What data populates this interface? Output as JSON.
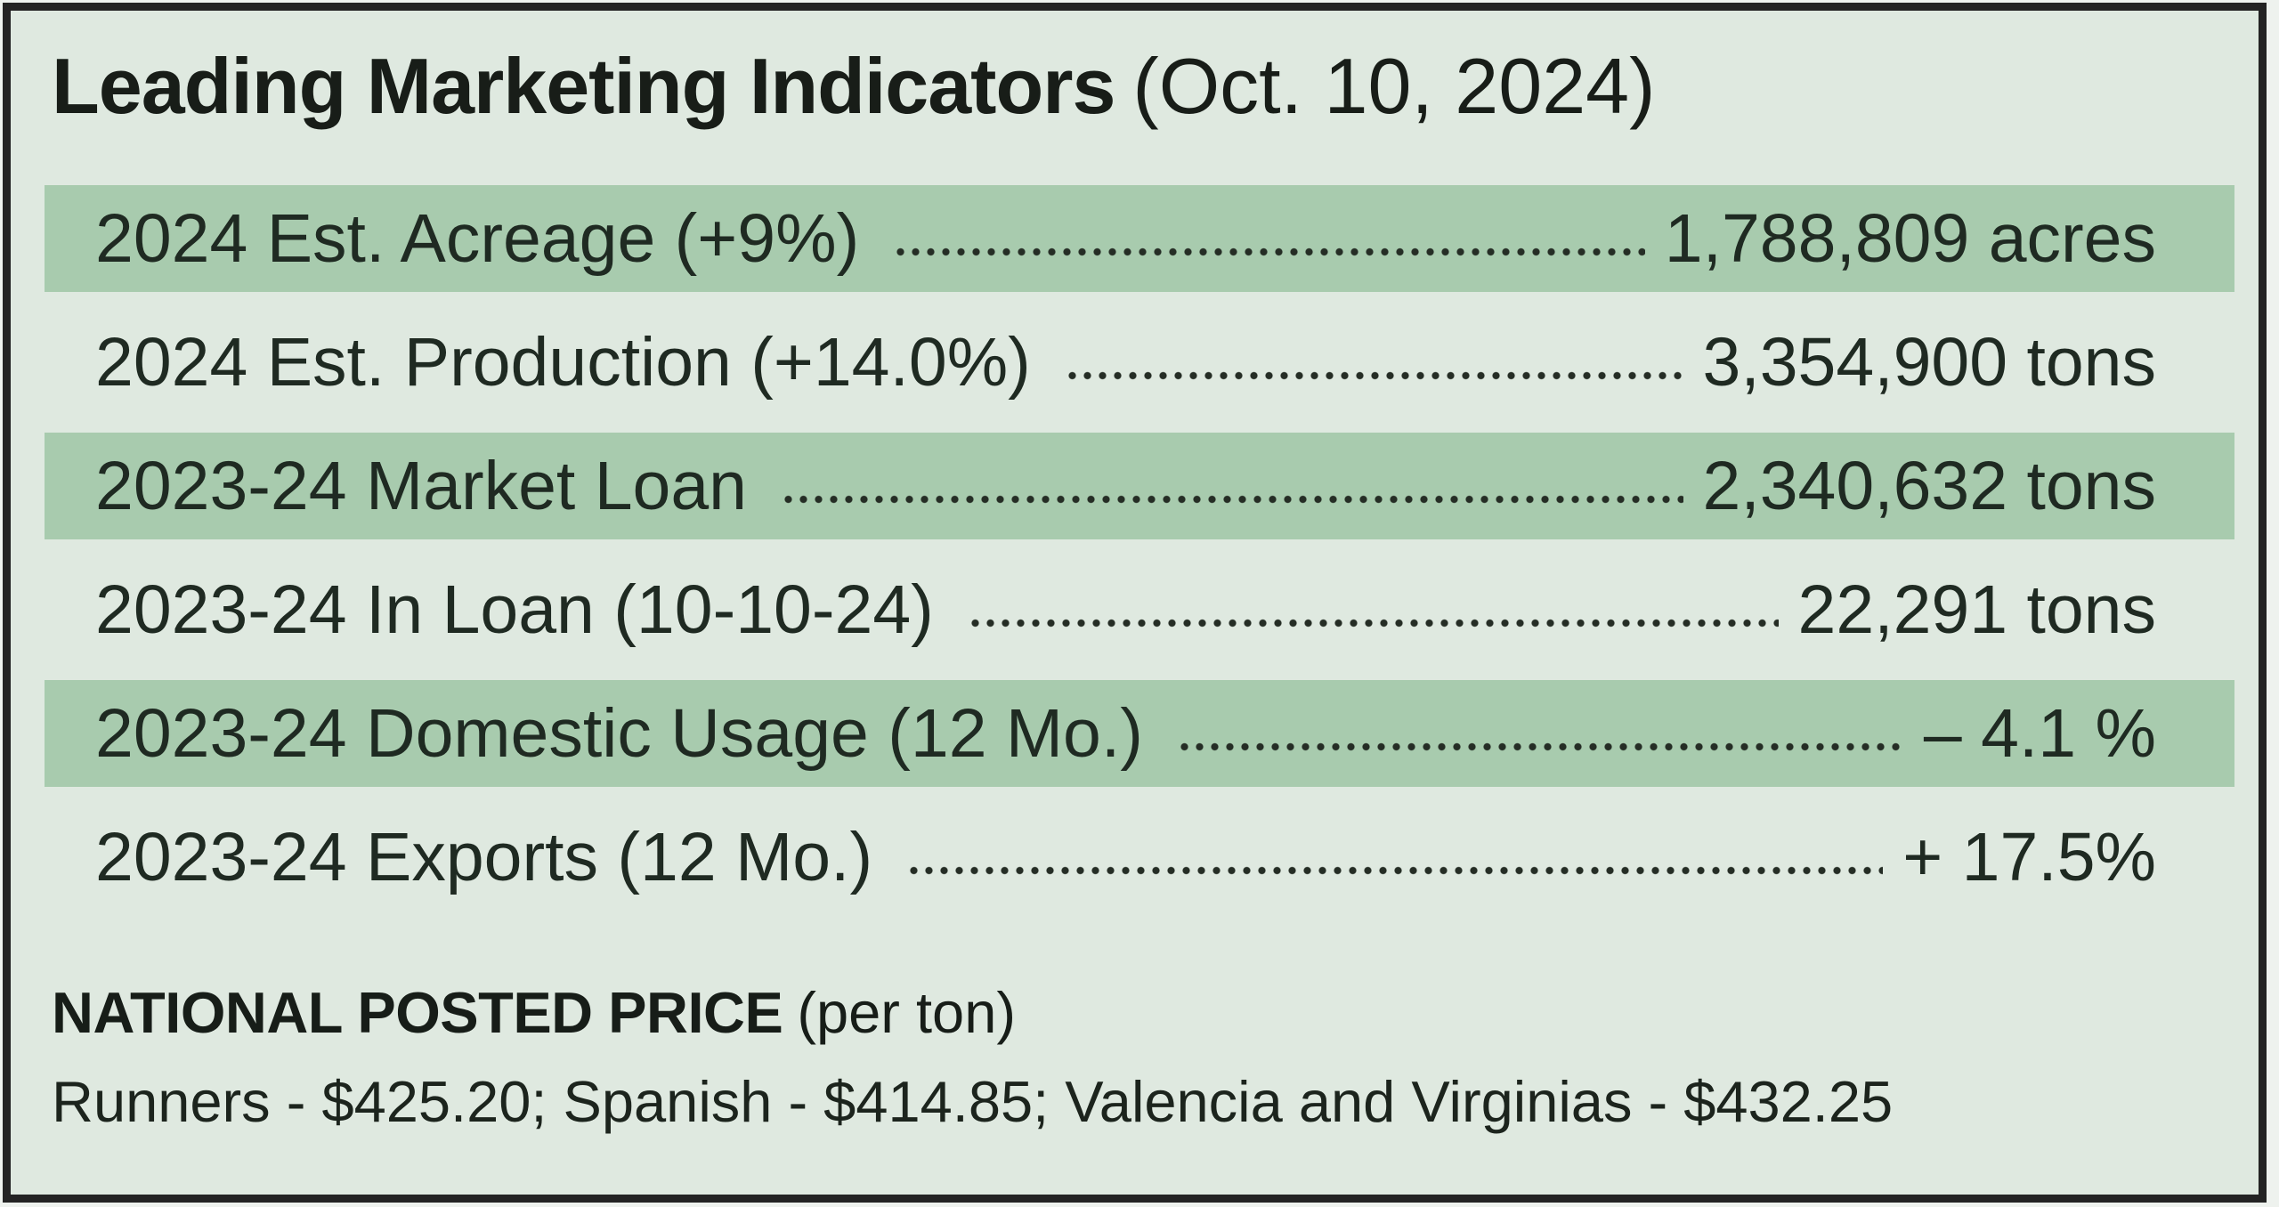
{
  "title": {
    "main": "Leading Marketing Indicators",
    "date": "(Oct. 10, 2024)"
  },
  "indicators": [
    {
      "label": "2024 Est. Acreage (+9%)",
      "value": "1,788,809 acres"
    },
    {
      "label": "2024 Est. Production (+14.0%)",
      "value": "3,354,900 tons"
    },
    {
      "label": "2023-24 Market Loan",
      "value": "2,340,632 tons"
    },
    {
      "label": "2023-24 In Loan (10-10-24)",
      "value": "22,291 tons"
    },
    {
      "label": "2023-24 Domestic Usage (12 Mo.)",
      "value": "– 4.1 %"
    },
    {
      "label": "2023-24 Exports (12 Mo.)",
      "value": "+ 17.5%"
    }
  ],
  "posted_price": {
    "heading": "NATIONAL POSTED PRICE",
    "unit": "(per ton)",
    "details": "Runners - $425.20; Spanish - $414.85; Valencia and Virginias - $432.25"
  },
  "colors": {
    "background": "#dfe9e0",
    "band": "#a8cbae",
    "text": "#1f2a22",
    "border": "#232323"
  }
}
